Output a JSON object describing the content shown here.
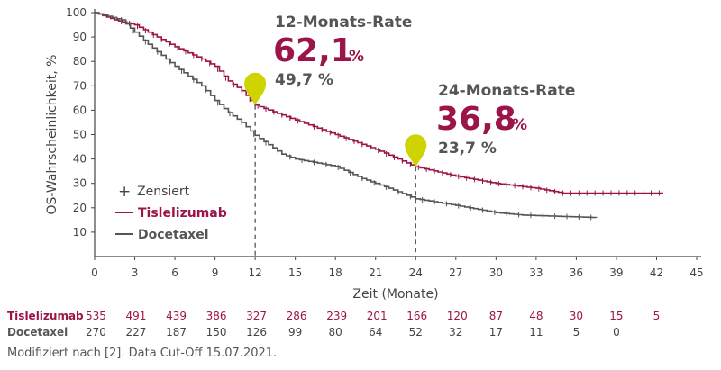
{
  "chart_data": {
    "type": "line",
    "subtype": "kaplan-meier",
    "xlabel": "Zeit (Monate)",
    "ylabel": "OS-Wahrscheinlichkeit, %",
    "xlim": [
      0,
      45
    ],
    "ylim": [
      0,
      100
    ],
    "xticks": [
      0,
      3,
      6,
      9,
      12,
      15,
      18,
      21,
      24,
      27,
      30,
      33,
      36,
      39,
      42,
      45
    ],
    "yticks": [
      10,
      20,
      30,
      40,
      50,
      60,
      70,
      80,
      90,
      100
    ],
    "legend": {
      "placement": "bottom-left",
      "censored": "Zensiert",
      "entries": [
        "Tislelizumab",
        "Docetaxel"
      ]
    },
    "series": [
      {
        "name": "Tislelizumab",
        "color": "#9b1548",
        "x": [
          0,
          1.5,
          3,
          4,
          6,
          8,
          9,
          10,
          11,
          12,
          15,
          18,
          21,
          24,
          27,
          30,
          33,
          35,
          42.5
        ],
        "y": [
          100,
          97,
          95,
          92,
          86,
          81,
          78,
          72,
          68,
          62.1,
          56,
          50,
          44,
          36.8,
          33,
          30,
          28,
          26,
          26
        ]
      },
      {
        "name": "Docetaxel",
        "color": "#555555",
        "x": [
          0,
          2,
          3,
          4,
          6,
          8,
          9,
          10,
          11,
          12,
          14,
          15,
          18,
          20,
          22,
          24,
          27,
          30,
          32,
          37.5
        ],
        "y": [
          100,
          97,
          92,
          87,
          78,
          70,
          64,
          59,
          55,
          49.7,
          42,
          40,
          37,
          32,
          28,
          23.7,
          21,
          18,
          17,
          16
        ]
      }
    ],
    "annotations": [
      {
        "x": 12,
        "title": "12-Monats-Rate",
        "main": "62,1",
        "unit": "%",
        "secondary": "49,7 %"
      },
      {
        "x": 24,
        "title": "24-Monats-Rate",
        "main": "36,8",
        "unit": "%",
        "secondary": "23,7 %"
      }
    ],
    "marker_color": "#cfd400",
    "risk_table": {
      "months": [
        0,
        3,
        6,
        9,
        12,
        15,
        18,
        21,
        24,
        27,
        30,
        33,
        36,
        39,
        42
      ],
      "rows": [
        {
          "label": "Tislelizumab",
          "values": [
            "535",
            "491",
            "439",
            "386",
            "327",
            "286",
            "239",
            "201",
            "166",
            "120",
            "87",
            "48",
            "30",
            "15",
            "5"
          ]
        },
        {
          "label": "Docetaxel",
          "values": [
            "270",
            "227",
            "187",
            "150",
            "126",
            "99",
            "80",
            "64",
            "52",
            "32",
            "17",
            "11",
            "5",
            "0"
          ]
        }
      ]
    }
  },
  "footnote": "Modifiziert nach [2]. Data Cut-Off 15.07.2021."
}
